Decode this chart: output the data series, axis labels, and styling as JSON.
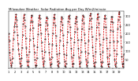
{
  "title": "Milwaukee Weather  Solar Radiation Avg per Day W/m2/minute",
  "title_fontsize": 2.8,
  "background_color": "#ffffff",
  "line_color": "#dd0000",
  "marker_color": "#000000",
  "grid_color": "#bbbbbb",
  "ylim": [
    0,
    330
  ],
  "yticks": [
    50,
    100,
    150,
    200,
    250,
    300
  ],
  "ylabel_fontsize": 2.5,
  "xlabel_fontsize": 2.5,
  "values": [
    200,
    160,
    90,
    50,
    20,
    10,
    30,
    60,
    110,
    170,
    210,
    240,
    260,
    290,
    310,
    280,
    240,
    190,
    140,
    110,
    80,
    55,
    30,
    10,
    20,
    60,
    120,
    190,
    255,
    290,
    310,
    280,
    240,
    175,
    120,
    75,
    40,
    15,
    10,
    40,
    95,
    165,
    225,
    270,
    300,
    305,
    270,
    230,
    175,
    130,
    90,
    50,
    20,
    8,
    20,
    60,
    125,
    195,
    250,
    290,
    305,
    285,
    250,
    200,
    150,
    100,
    60,
    28,
    10,
    40,
    95,
    170,
    225,
    265,
    295,
    285,
    250,
    195,
    140,
    90,
    55,
    22,
    10,
    25,
    65,
    135,
    200,
    260,
    290,
    308,
    285,
    245,
    185,
    130,
    80,
    40,
    18,
    8,
    32,
    85,
    160,
    220,
    268,
    295,
    285,
    250,
    190,
    130,
    80,
    42,
    15,
    8,
    25,
    75,
    148,
    210,
    268,
    298,
    305,
    285,
    235,
    175,
    115,
    62,
    28,
    10,
    28,
    75,
    148,
    208,
    258,
    288,
    298,
    268,
    228,
    165,
    115,
    65,
    28,
    10,
    35,
    95,
    165,
    228,
    278,
    305,
    298,
    258,
    195,
    145,
    95,
    48,
    18,
    10,
    35,
    85,
    158,
    228,
    278,
    305,
    315,
    285,
    235,
    182,
    122,
    72,
    32,
    15,
    8,
    35,
    95,
    168,
    238,
    288,
    315,
    295,
    258,
    195,
    135,
    82,
    38,
    15,
    8,
    35,
    95,
    168,
    238,
    285,
    305,
    285,
    235,
    175,
    115,
    62,
    22,
    8,
    25,
    75,
    148,
    218,
    268,
    295,
    295,
    262,
    212,
    155,
    105,
    52,
    18,
    8,
    30,
    80,
    155,
    228,
    278,
    315,
    325,
    295,
    242,
    182,
    122,
    68,
    28,
    8,
    28,
    80
  ],
  "vline_positions": [
    12,
    24,
    36,
    48,
    60,
    72,
    84,
    96,
    108,
    120,
    132,
    144,
    156,
    168,
    180,
    192,
    204
  ],
  "xlabel_tick_step": 12
}
